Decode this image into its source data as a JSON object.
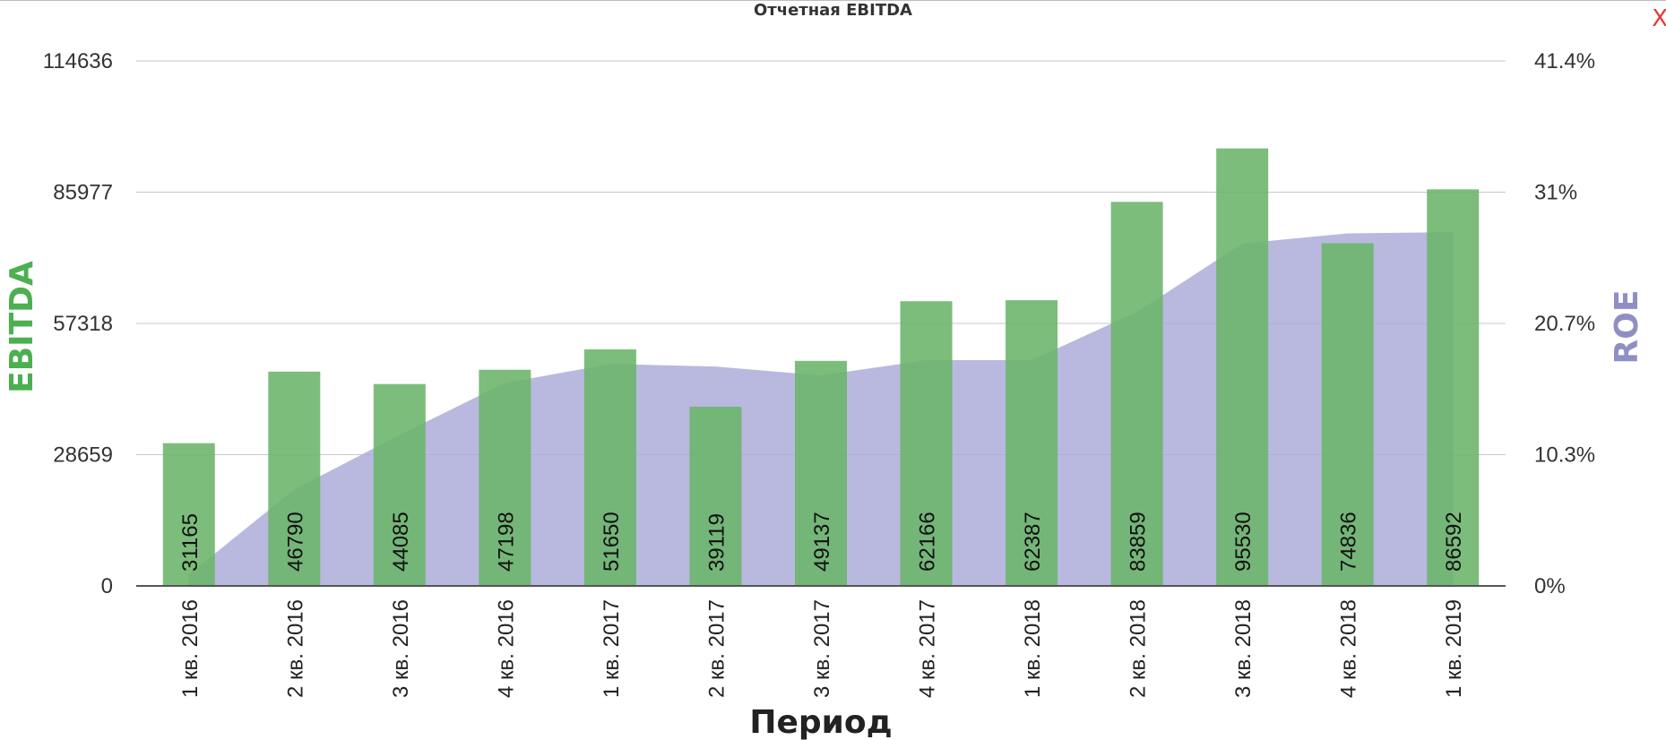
{
  "window": {
    "close_label": "X"
  },
  "chart_data": {
    "type": "bar",
    "title": "Отчетная EBITDA",
    "xlabel": "Период",
    "ylabel": "EBITDA",
    "y2label": "ROE",
    "categories": [
      "1 кв. 2016",
      "2 кв. 2016",
      "3 кв. 2016",
      "4 кв. 2016",
      "1 кв. 2017",
      "2 кв. 2017",
      "3 кв. 2017",
      "4 кв. 2017",
      "1 кв. 2018",
      "2 кв. 2018",
      "3 кв. 2018",
      "4 кв. 2018",
      "1 кв. 2019"
    ],
    "series": [
      {
        "name": "EBITDA",
        "type": "bar",
        "axis": "left",
        "values": [
          31165,
          46790,
          44085,
          47198,
          51650,
          39119,
          49137,
          62166,
          62387,
          83859,
          95530,
          74836,
          86592
        ]
      },
      {
        "name": "ROE",
        "type": "area",
        "axis": "right",
        "values": [
          0.9,
          7.6,
          11.9,
          16.0,
          17.5,
          17.3,
          16.6,
          17.8,
          17.8,
          21.6,
          27.0,
          27.8,
          27.9
        ]
      }
    ],
    "ylim": [
      0,
      114636
    ],
    "y_ticks": [
      "0",
      "28659",
      "57318",
      "85977",
      "114636"
    ],
    "y2lim": [
      0,
      41.4
    ],
    "y2_ticks": [
      "0%",
      "10.3%",
      "20.7%",
      "31%",
      "41.4%"
    ],
    "grid": true,
    "colors": {
      "bars": "#6ab46a",
      "area": "#aaaad8",
      "ylabel": "#4caf50",
      "y2label": "#8f8fc4",
      "close": "#e53935"
    }
  }
}
